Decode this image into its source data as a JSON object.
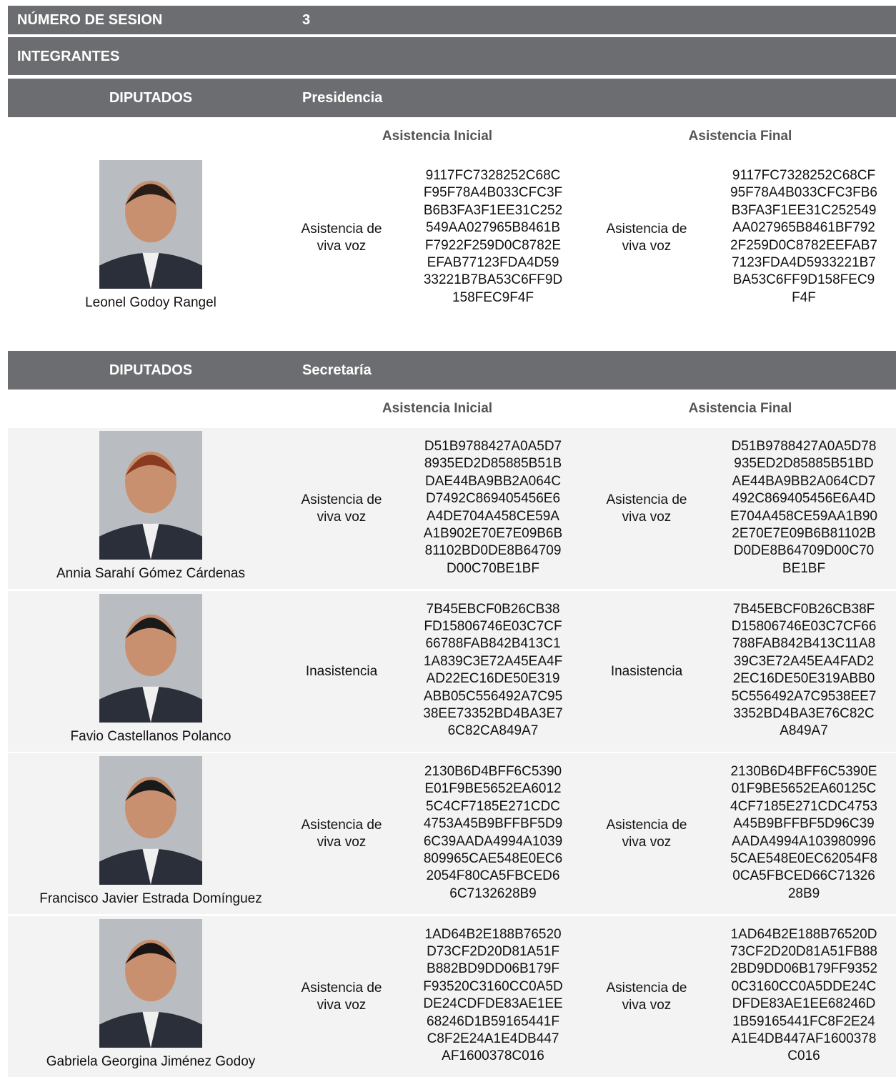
{
  "session": {
    "label": "NÚMERO DE SESION",
    "value": "3"
  },
  "members_heading": "INTEGRANTES",
  "sections": [
    {
      "group": "DIPUTADOS",
      "role": "Presidencia",
      "initial_header": "Asistencia Inicial",
      "final_header": "Asistencia Final",
      "members": [
        {
          "name": "Leonel Godoy Rangel",
          "initial_status": "Asistencia de viva voz",
          "initial_hash": [
            "9117FC7328252C68C",
            "F95F78A4B033CFC3F",
            "B6B3FA3F1EE31C252",
            "549AA027965B8461B",
            "F7922F259D0C8782E",
            "EFAB77123FDA4D59",
            "33221B7BA53C6FF9D",
            "158FEC9F4F"
          ],
          "final_status": "Asistencia de viva voz",
          "final_hash": [
            "9117FC7328252C68CF",
            "95F78A4B033CFC3FB6",
            "B3FA3F1EE31C252549",
            "AA027965B8461BF792",
            "2F259D0C8782EEFAB7",
            "7123FDA4D5933221B7",
            "BA53C6FF9D158FEC9",
            "F4F"
          ]
        }
      ]
    },
    {
      "group": "DIPUTADOS",
      "role": "Secretaría",
      "initial_header": "Asistencia Inicial",
      "final_header": "Asistencia Final",
      "members": [
        {
          "name": "Annia Sarahí Gómez Cárdenas",
          "initial_status": "Asistencia de viva voz",
          "initial_hash": [
            "D51B9788427A0A5D7",
            "8935ED2D85885B51B",
            "DAE44BA9BB2A064C",
            "D7492C869405456E6",
            "A4DE704A458CE59A",
            "A1B902E70E7E09B6B",
            "81102BD0DE8B64709",
            "D00C70BE1BF"
          ],
          "final_status": "Asistencia de viva voz",
          "final_hash": [
            "D51B9788427A0A5D78",
            "935ED2D85885B51BD",
            "AE44BA9BB2A064CD7",
            "492C869405456E6A4D",
            "E704A458CE59AA1B90",
            "2E70E7E09B6B81102B",
            "D0DE8B64709D00C70",
            "BE1BF"
          ]
        },
        {
          "name": "Favio Castellanos Polanco",
          "initial_status": "Inasistencia",
          "initial_hash": [
            "7B45EBCF0B26CB38",
            "FD15806746E03C7CF",
            "66788FAB842B413C1",
            "1A839C3E72A45EA4F",
            "AD22EC16DE50E319",
            "ABB05C556492A7C95",
            "38EE73352BD4BA3E7",
            "6C82CA849A7"
          ],
          "final_status": "Inasistencia",
          "final_hash": [
            "7B45EBCF0B26CB38F",
            "D15806746E03C7CF66",
            "788FAB842B413C11A8",
            "39C3E72A45EA4FAD2",
            "2EC16DE50E319ABB0",
            "5C556492A7C9538EE7",
            "3352BD4BA3E76C82C",
            "A849A7"
          ]
        },
        {
          "name": "Francisco Javier Estrada Domínguez",
          "initial_status": "Asistencia de viva voz",
          "initial_hash": [
            "2130B6D4BFF6C5390",
            "E01F9BE5652EA6012",
            "5C4CF7185E271CDC",
            "4753A45B9BFFBF5D9",
            "6C39AADA4994A1039",
            "809965CAE548E0EC6",
            "2054F80CA5FBCED6",
            "6C7132628B9"
          ],
          "final_status": "Asistencia de viva voz",
          "final_hash": [
            "2130B6D4BFF6C5390E",
            "01F9BE5652EA60125C",
            "4CF7185E271CDC4753",
            "A45B9BFFBF5D96C39",
            "AADA4994A103980996",
            "5CAE548E0EC62054F8",
            "0CA5FBCED66C71326",
            "28B9"
          ]
        },
        {
          "name": "Gabriela Georgina Jiménez Godoy",
          "initial_status": "Asistencia de viva voz",
          "initial_hash": [
            "1AD64B2E188B76520",
            "D73CF2D20D81A51F",
            "B882BD9DD06B179F",
            "F93520C3160CC0A5D",
            "DE24CDFDE83AE1EE",
            "68246D1B59165441F",
            "C8F2E24A1E4DB447",
            "AF1600378C016"
          ],
          "final_status": "Asistencia de viva voz",
          "final_hash": [
            "1AD64B2E188B76520D",
            "73CF2D20D81A51FB88",
            "2BD9DD06B179FF9352",
            "0C3160CC0A5DDE24C",
            "DFDE83AE1EE68246D",
            "1B59165441FC8F2E24",
            "A1E4DB447AF1600378",
            "C016"
          ]
        }
      ]
    }
  ]
}
